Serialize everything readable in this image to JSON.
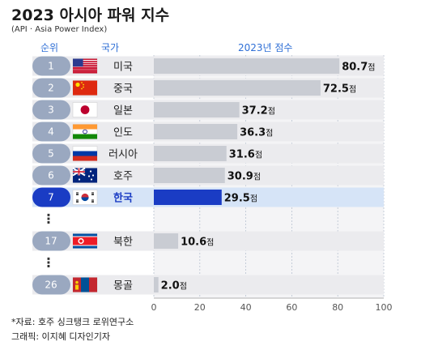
{
  "header": {
    "title": "2023 아시아 파워 지수",
    "subtitle": "(API · Asia Power Index)",
    "col_rank": "순위",
    "col_country": "국가",
    "col_score": "2023년 점수"
  },
  "footer": {
    "source": "*자료: 호주 싱크탱크 로위연구소",
    "credit": "그래픽: 이지혜 디자인기자"
  },
  "colors": {
    "bar_default": "#c9ccd3",
    "bar_highlight": "#1a3cc4",
    "row_highlight": "#d6e4f7",
    "rank_pill": "#9aa8c0",
    "rank_pill_highlight": "#1a3cc4",
    "axis_text": "#555555",
    "grid": "#b8c2d0"
  },
  "chart_data": {
    "type": "bar",
    "orientation": "horizontal",
    "score_suffix": "점",
    "xlim": [
      0,
      100
    ],
    "x_ticks": [
      "0",
      "20",
      "40",
      "60",
      "80",
      "100"
    ],
    "ellipsis": "⋮",
    "rows": [
      {
        "rank": "1",
        "country": "미국",
        "flag": "us-flag",
        "value": 80.7,
        "value_label": "80.7",
        "highlight": false
      },
      {
        "rank": "2",
        "country": "중국",
        "flag": "china-flag",
        "value": 72.5,
        "value_label": "72.5",
        "highlight": false
      },
      {
        "rank": "3",
        "country": "일본",
        "flag": "japan-flag",
        "value": 37.2,
        "value_label": "37.2",
        "highlight": false
      },
      {
        "rank": "4",
        "country": "인도",
        "flag": "india-flag",
        "value": 36.3,
        "value_label": "36.3",
        "highlight": false
      },
      {
        "rank": "5",
        "country": "러시아",
        "flag": "russia-flag",
        "value": 31.6,
        "value_label": "31.6",
        "highlight": false
      },
      {
        "rank": "6",
        "country": "호주",
        "flag": "australia-flag",
        "value": 30.9,
        "value_label": "30.9",
        "highlight": false
      },
      {
        "rank": "7",
        "country": "한국",
        "flag": "south-korea-flag",
        "value": 29.5,
        "value_label": "29.5",
        "highlight": true
      },
      {
        "ellipsis": true
      },
      {
        "rank": "17",
        "country": "북한",
        "flag": "north-korea-flag",
        "value": 10.6,
        "value_label": "10.6",
        "highlight": false
      },
      {
        "ellipsis": true
      },
      {
        "rank": "26",
        "country": "몽골",
        "flag": "mongolia-flag",
        "value": 2.0,
        "value_label": "2.0",
        "highlight": false
      }
    ]
  }
}
